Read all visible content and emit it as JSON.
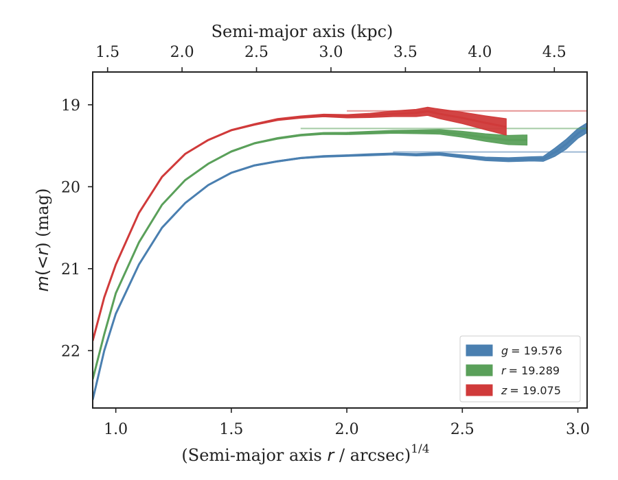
{
  "chart_data": {
    "type": "line",
    "xlabel_prefix": "(Semi-major axis ",
    "xlabel_var": "r",
    "xlabel_suffix": " / arcsec)",
    "xlabel_sup": "1/4",
    "ylabel_var": "m",
    "ylabel_mid": "(<",
    "ylabel_var2": "r",
    "ylabel_suffix": ") (mag)",
    "top_xlabel": "Semi-major axis (kpc)",
    "xlim": [
      0.9,
      3.04
    ],
    "ylim": [
      22.7,
      18.6
    ],
    "top_xlim": [
      1.4,
      4.72
    ],
    "x_ticks": [
      1.0,
      1.5,
      2.0,
      2.5,
      3.0
    ],
    "x_tick_labels": [
      "1.0",
      "1.5",
      "2.0",
      "2.5",
      "3.0"
    ],
    "y_ticks": [
      19,
      20,
      21,
      22
    ],
    "y_tick_labels": [
      "19",
      "20",
      "21",
      "22"
    ],
    "top_ticks": [
      1.5,
      2.0,
      2.5,
      3.0,
      3.5,
      4.0,
      4.5
    ],
    "top_tick_labels": [
      "1.5",
      "2.0",
      "2.5",
      "3.0",
      "3.5",
      "4.0",
      "4.5"
    ],
    "legend_position": "lower-right",
    "series": [
      {
        "name": "g = 19.576",
        "legend_var": "g",
        "legend_value": "= 19.576",
        "color": "#4a7fb0",
        "asymptote": 19.576,
        "x": [
          0.9,
          0.95,
          1.0,
          1.1,
          1.2,
          1.3,
          1.4,
          1.5,
          1.6,
          1.7,
          1.8,
          1.9,
          2.0,
          2.1,
          2.2,
          2.3,
          2.4,
          2.5,
          2.6,
          2.7,
          2.8,
          2.85,
          2.9,
          2.95,
          3.0,
          3.04
        ],
        "y": [
          22.6,
          22.0,
          21.55,
          20.95,
          20.5,
          20.2,
          19.98,
          19.83,
          19.74,
          19.69,
          19.65,
          19.63,
          19.62,
          19.61,
          19.6,
          19.61,
          19.6,
          19.63,
          19.66,
          19.67,
          19.66,
          19.66,
          19.58,
          19.48,
          19.35,
          19.28
        ],
        "band": [
          0.006,
          0.006,
          0.006,
          0.006,
          0.006,
          0.006,
          0.006,
          0.008,
          0.008,
          0.008,
          0.008,
          0.01,
          0.01,
          0.012,
          0.012,
          0.014,
          0.016,
          0.018,
          0.022,
          0.024,
          0.026,
          0.03,
          0.05,
          0.06,
          0.06,
          0.06
        ]
      },
      {
        "name": "r = 19.289",
        "legend_var": "r",
        "legend_value": "= 19.289",
        "color": "#5aa05a",
        "asymptote": 19.289,
        "x": [
          0.9,
          0.95,
          1.0,
          1.1,
          1.2,
          1.3,
          1.4,
          1.5,
          1.6,
          1.7,
          1.8,
          1.9,
          2.0,
          2.1,
          2.2,
          2.3,
          2.4,
          2.5,
          2.6,
          2.7,
          2.78
        ],
        "y": [
          22.35,
          21.8,
          21.3,
          20.68,
          20.22,
          19.92,
          19.72,
          19.57,
          19.47,
          19.41,
          19.37,
          19.35,
          19.35,
          19.34,
          19.33,
          19.33,
          19.33,
          19.36,
          19.4,
          19.43,
          19.43
        ],
        "band": [
          0.006,
          0.006,
          0.006,
          0.006,
          0.006,
          0.006,
          0.006,
          0.008,
          0.008,
          0.01,
          0.01,
          0.012,
          0.014,
          0.016,
          0.018,
          0.022,
          0.028,
          0.036,
          0.046,
          0.056,
          0.062
        ]
      },
      {
        "name": "z = 19.075",
        "legend_var": "z",
        "legend_value": "= 19.075",
        "color": "#d03a3a",
        "asymptote": 19.075,
        "x": [
          0.9,
          0.95,
          1.0,
          1.1,
          1.2,
          1.3,
          1.4,
          1.5,
          1.6,
          1.7,
          1.8,
          1.9,
          2.0,
          2.1,
          2.2,
          2.3,
          2.35,
          2.4,
          2.5,
          2.6,
          2.69
        ],
        "y": [
          21.88,
          21.35,
          20.95,
          20.32,
          19.88,
          19.6,
          19.43,
          19.31,
          19.24,
          19.18,
          19.15,
          19.13,
          19.14,
          19.13,
          19.11,
          19.1,
          19.08,
          19.11,
          19.16,
          19.22,
          19.27
        ],
        "band": [
          0.006,
          0.006,
          0.006,
          0.006,
          0.006,
          0.006,
          0.006,
          0.008,
          0.01,
          0.012,
          0.014,
          0.016,
          0.02,
          0.026,
          0.034,
          0.044,
          0.05,
          0.058,
          0.07,
          0.085,
          0.1
        ]
      }
    ]
  }
}
